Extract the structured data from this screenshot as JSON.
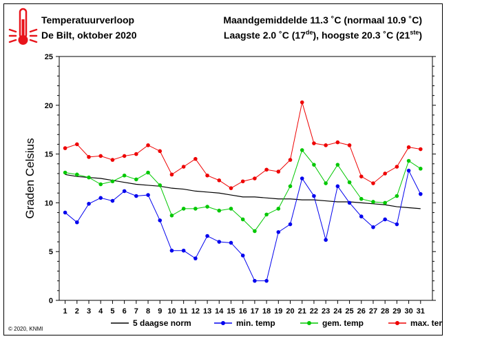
{
  "header": {
    "title": "Temperatuurverloop",
    "subtitle": "De Bilt, oktober 2020",
    "stats_line1": "Maandgemiddelde 11.3 ˚C (normaal 10.9 ˚C)",
    "stats_line2_pre": "Laagste 2.0 ˚C (17",
    "stats_line2_sup1": "de",
    "stats_line2_mid": "), hoogste 20.3 ˚C (21",
    "stats_line2_sup2": "ste",
    "stats_line2_post": ")"
  },
  "icon": {
    "name": "thermometer-icon",
    "color": "#e8141b"
  },
  "copyright": "© 2020, KNMI",
  "chart_data": {
    "type": "line",
    "ylabel": "Graden Celsius",
    "ylim": [
      0,
      25
    ],
    "yticks": [
      0,
      5,
      10,
      15,
      20,
      25
    ],
    "xlim": [
      0.5,
      32
    ],
    "x": [
      1,
      2,
      3,
      4,
      5,
      6,
      7,
      8,
      9,
      10,
      11,
      12,
      13,
      14,
      15,
      16,
      17,
      18,
      19,
      20,
      21,
      22,
      23,
      24,
      25,
      26,
      27,
      28,
      29,
      30,
      31
    ],
    "series": [
      {
        "name": "5 daagse norm",
        "color": "#000000",
        "marker": false,
        "values": [
          12.9,
          12.7,
          12.6,
          12.5,
          12.3,
          12.1,
          11.9,
          11.8,
          11.7,
          11.5,
          11.4,
          11.2,
          11.1,
          11.0,
          10.8,
          10.6,
          10.6,
          10.5,
          10.4,
          10.4,
          10.3,
          10.3,
          10.2,
          10.1,
          10.1,
          10.0,
          9.9,
          9.8,
          9.6,
          9.5,
          9.4
        ]
      },
      {
        "name": "min. temp",
        "color": "#0000ee",
        "marker": true,
        "values": [
          9.0,
          8.0,
          9.9,
          10.5,
          10.2,
          11.2,
          10.7,
          10.8,
          8.2,
          5.1,
          5.1,
          4.3,
          6.6,
          6.0,
          5.9,
          4.6,
          2.0,
          2.0,
          7.0,
          7.8,
          12.5,
          10.7,
          6.2,
          11.7,
          10.0,
          8.6,
          7.5,
          8.3,
          7.8,
          13.3,
          10.9
        ]
      },
      {
        "name": "gem. temp",
        "color": "#00c800",
        "marker": true,
        "values": [
          13.1,
          12.9,
          12.6,
          11.9,
          12.2,
          12.8,
          12.4,
          13.1,
          11.8,
          8.7,
          9.4,
          9.4,
          9.6,
          9.2,
          9.4,
          8.3,
          7.1,
          8.8,
          9.4,
          11.7,
          15.4,
          13.9,
          12.0,
          13.9,
          12.1,
          10.4,
          10.1,
          10.0,
          10.7,
          14.3,
          13.5
        ]
      },
      {
        "name": "max. temp",
        "color": "#ee0000",
        "marker": true,
        "values": [
          15.6,
          16.0,
          14.7,
          14.8,
          14.4,
          14.8,
          15.0,
          15.9,
          15.3,
          12.9,
          13.7,
          14.5,
          12.8,
          12.3,
          11.5,
          12.2,
          12.5,
          13.4,
          13.2,
          14.4,
          20.3,
          16.1,
          15.9,
          16.2,
          15.9,
          12.7,
          12.0,
          13.0,
          13.7,
          15.7,
          15.5
        ]
      }
    ]
  }
}
